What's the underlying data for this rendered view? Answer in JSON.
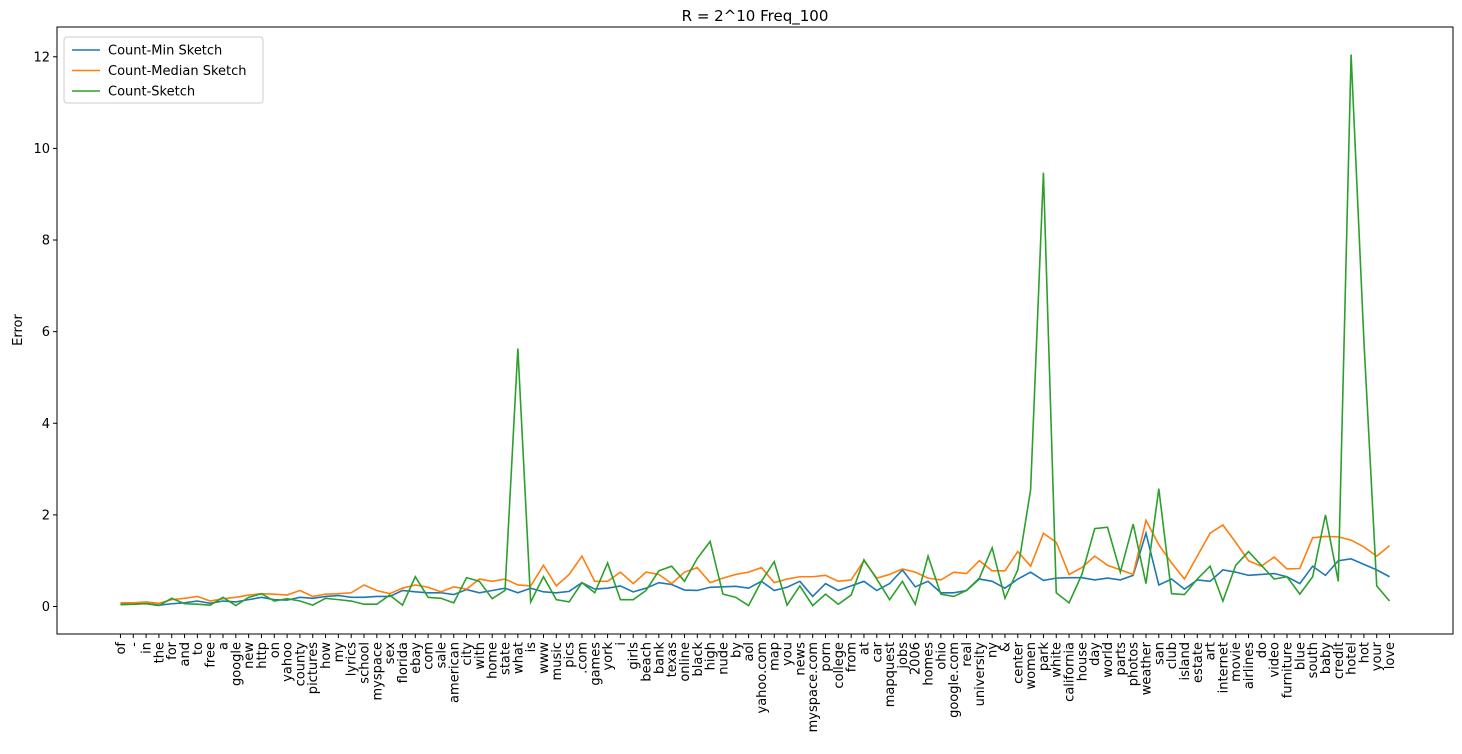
{
  "chart_data": {
    "type": "line",
    "title": "R = 2^10  Freq_100",
    "y_label": "Error",
    "categories": [
      "of",
      "-",
      "in",
      "the",
      "for",
      "and",
      "to",
      "free",
      "a",
      "google",
      "new",
      "http",
      "on",
      "yahoo",
      "county",
      "pictures",
      "how",
      "my",
      "lyrics",
      "school",
      "myspace",
      "sex",
      "florida",
      "ebay",
      "com",
      "sale",
      "american",
      "city",
      "with",
      "home",
      "state",
      "what",
      "is",
      "www",
      "music",
      "pics",
      ".com",
      "games",
      "york",
      "i",
      "girls",
      "beach",
      "bank",
      "texas",
      "online",
      "black",
      "high",
      "nude",
      "by",
      "aol",
      "yahoo.com",
      "map",
      "you",
      "news",
      "myspace.com",
      "porn",
      "college",
      "from",
      "at",
      "car",
      "mapquest",
      "jobs",
      "2006",
      "homes",
      "ohio",
      "google.com",
      "real",
      "university",
      "ny",
      "&",
      "center",
      "women",
      "park",
      "white",
      "california",
      "house",
      "day",
      "world",
      "parts",
      "photos",
      "weather",
      "san",
      "club",
      "island",
      "estate",
      "art",
      "internet",
      "movie",
      "airlines",
      "do",
      "video",
      "furniture",
      "blue",
      "south",
      "baby",
      "credit",
      "hotel",
      "hot",
      "your",
      "love"
    ],
    "series": [
      {
        "name": "Count-Min Sketch",
        "color": "#1f77b4",
        "values": [
          0.05,
          0.05,
          0.07,
          0.03,
          0.06,
          0.08,
          0.12,
          0.07,
          0.12,
          0.1,
          0.15,
          0.2,
          0.15,
          0.14,
          0.2,
          0.18,
          0.22,
          0.24,
          0.2,
          0.2,
          0.22,
          0.22,
          0.35,
          0.32,
          0.3,
          0.3,
          0.26,
          0.37,
          0.3,
          0.35,
          0.4,
          0.3,
          0.4,
          0.32,
          0.3,
          0.33,
          0.52,
          0.38,
          0.4,
          0.45,
          0.32,
          0.4,
          0.52,
          0.48,
          0.36,
          0.35,
          0.42,
          0.43,
          0.44,
          0.4,
          0.55,
          0.35,
          0.42,
          0.55,
          0.22,
          0.5,
          0.35,
          0.45,
          0.55,
          0.35,
          0.5,
          0.8,
          0.43,
          0.55,
          0.3,
          0.3,
          0.35,
          0.6,
          0.55,
          0.4,
          0.6,
          0.75,
          0.57,
          0.62,
          0.63,
          0.63,
          0.58,
          0.62,
          0.58,
          0.68,
          1.6,
          0.47,
          0.6,
          0.38,
          0.58,
          0.55,
          0.8,
          0.75,
          0.68,
          0.7,
          0.72,
          0.65,
          0.5,
          0.88,
          0.68,
          1.0,
          1.04,
          0.92,
          0.8,
          0.65
        ]
      },
      {
        "name": "Count-Median Sketch",
        "color": "#ff7f0e",
        "values": [
          0.08,
          0.08,
          0.1,
          0.07,
          0.15,
          0.18,
          0.22,
          0.12,
          0.17,
          0.2,
          0.25,
          0.28,
          0.27,
          0.25,
          0.35,
          0.22,
          0.27,
          0.28,
          0.3,
          0.47,
          0.35,
          0.28,
          0.4,
          0.47,
          0.42,
          0.32,
          0.43,
          0.38,
          0.6,
          0.55,
          0.6,
          0.47,
          0.45,
          0.9,
          0.45,
          0.7,
          1.1,
          0.55,
          0.55,
          0.75,
          0.5,
          0.75,
          0.7,
          0.5,
          0.75,
          0.85,
          0.52,
          0.62,
          0.7,
          0.75,
          0.85,
          0.52,
          0.6,
          0.65,
          0.65,
          0.68,
          0.55,
          0.58,
          1.0,
          0.62,
          0.7,
          0.82,
          0.75,
          0.62,
          0.58,
          0.75,
          0.72,
          1.0,
          0.78,
          0.78,
          1.2,
          0.88,
          1.6,
          1.4,
          0.7,
          0.85,
          1.1,
          0.9,
          0.8,
          0.7,
          1.88,
          1.35,
          0.95,
          0.6,
          1.1,
          1.6,
          1.78,
          1.4,
          1.0,
          0.88,
          1.08,
          0.82,
          0.83,
          1.5,
          1.53,
          1.52,
          1.45,
          1.3,
          1.1,
          1.33
        ]
      },
      {
        "name": "Count-Sketch",
        "color": "#2ca02c",
        "values": [
          0.04,
          0.05,
          0.06,
          0.02,
          0.18,
          0.06,
          0.05,
          0.03,
          0.2,
          0.02,
          0.2,
          0.28,
          0.12,
          0.17,
          0.12,
          0.03,
          0.18,
          0.15,
          0.12,
          0.05,
          0.05,
          0.25,
          0.03,
          0.65,
          0.2,
          0.18,
          0.08,
          0.63,
          0.55,
          0.17,
          0.35,
          5.63,
          0.1,
          0.65,
          0.15,
          0.1,
          0.52,
          0.3,
          0.95,
          0.15,
          0.15,
          0.35,
          0.78,
          0.88,
          0.55,
          1.05,
          1.42,
          0.27,
          0.2,
          0.02,
          0.55,
          0.98,
          0.03,
          0.45,
          0.02,
          0.27,
          0.05,
          0.25,
          1.02,
          0.6,
          0.15,
          0.55,
          0.05,
          1.1,
          0.27,
          0.22,
          0.35,
          0.62,
          1.28,
          0.18,
          0.8,
          2.55,
          9.47,
          0.3,
          0.08,
          0.7,
          1.7,
          1.73,
          0.75,
          1.8,
          0.5,
          2.57,
          0.28,
          0.26,
          0.6,
          0.88,
          0.12,
          0.9,
          1.2,
          0.9,
          0.6,
          0.65,
          0.27,
          0.65,
          2.0,
          0.55,
          12.05,
          5.8,
          0.45,
          0.12
        ]
      }
    ],
    "ylim": [
      -0.6,
      12.65
    ],
    "yticks": [
      0,
      2,
      4,
      6,
      8,
      10,
      12
    ],
    "legend": "upper left"
  }
}
